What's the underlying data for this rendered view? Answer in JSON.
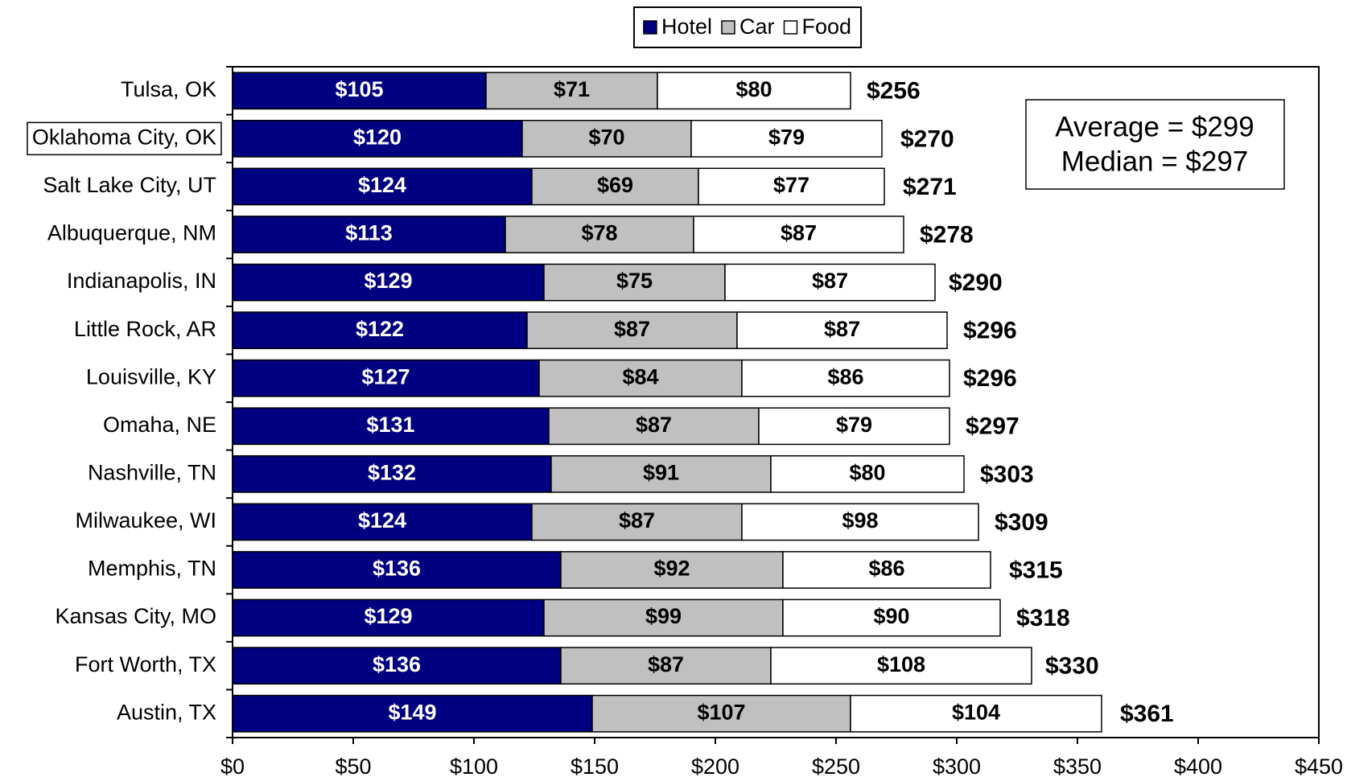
{
  "chart_data": {
    "type": "stacked_bar_horizontal",
    "categories": [
      "Tulsa, OK",
      "Oklahoma City, OK",
      "Salt Lake City, UT",
      "Albuquerque, NM",
      "Indianapolis, IN",
      "Little Rock, AR",
      "Louisville, KY",
      "Omaha, NE",
      "Nashville, TN",
      "Milwaukee, WI",
      "Memphis, TN",
      "Kansas City, MO",
      "Fort Worth, TX",
      "Austin, TX"
    ],
    "series": [
      {
        "name": "Hotel",
        "color": "#000080",
        "values": [
          105,
          120,
          124,
          113,
          129,
          122,
          127,
          131,
          132,
          124,
          136,
          129,
          136,
          149
        ],
        "value_labels": [
          "$105",
          "$120",
          "$124",
          "$113",
          "$129",
          "$122",
          "$127",
          "$131",
          "$132",
          "$124",
          "$136",
          "$129",
          "$136",
          "$149"
        ]
      },
      {
        "name": "Car",
        "color": "#c0c0c0",
        "values": [
          71,
          70,
          69,
          78,
          75,
          87,
          84,
          87,
          91,
          87,
          92,
          99,
          87,
          107
        ],
        "value_labels": [
          "$71",
          "$70",
          "$69",
          "$78",
          "$75",
          "$87",
          "$84",
          "$87",
          "$91",
          "$87",
          "$92",
          "$99",
          "$87",
          "$107"
        ]
      },
      {
        "name": "Food",
        "color": "#ffffff",
        "values": [
          80,
          79,
          77,
          87,
          87,
          87,
          86,
          79,
          80,
          98,
          86,
          90,
          108,
          104
        ],
        "value_labels": [
          "$80",
          "$79",
          "$77",
          "$87",
          "$87",
          "$87",
          "$86",
          "$79",
          "$80",
          "$98",
          "$86",
          "$90",
          "$108",
          "$104"
        ]
      }
    ],
    "totals": {
      "values": [
        256,
        270,
        271,
        278,
        290,
        296,
        296,
        297,
        303,
        309,
        315,
        318,
        330,
        361
      ],
      "value_labels": [
        "$256",
        "$270",
        "$271",
        "$278",
        "$290",
        "$296",
        "$296",
        "$297",
        "$303",
        "$309",
        "$315",
        "$318",
        "$330",
        "$361"
      ]
    },
    "annotations": [
      "Average = $299",
      "Median = $297"
    ],
    "highlighted_category": 1,
    "xlim": [
      0,
      450
    ],
    "xticks": [
      {
        "value": 0,
        "label": "$0"
      },
      {
        "value": 50,
        "label": "$50"
      },
      {
        "value": 100,
        "label": "$100"
      },
      {
        "value": 150,
        "label": "$150"
      },
      {
        "value": 200,
        "label": "$200"
      },
      {
        "value": 250,
        "label": "$250"
      },
      {
        "value": 300,
        "label": "$300"
      },
      {
        "value": 350,
        "label": "$350"
      },
      {
        "value": 400,
        "label": "$400"
      },
      {
        "value": 450,
        "label": "$450"
      }
    ],
    "legend": "top",
    "grid": false
  }
}
